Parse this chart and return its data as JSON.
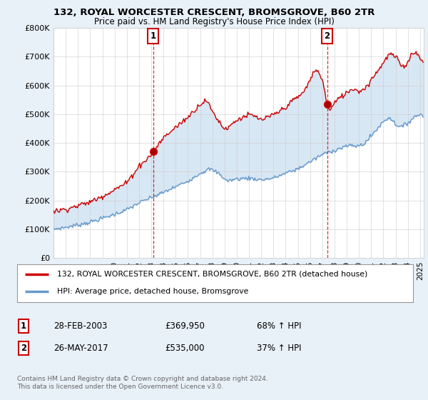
{
  "title1": "132, ROYAL WORCESTER CRESCENT, BROMSGROVE, B60 2TR",
  "title2": "Price paid vs. HM Land Registry's House Price Index (HPI)",
  "ylim": [
    0,
    800000
  ],
  "yticks": [
    0,
    100000,
    200000,
    300000,
    400000,
    500000,
    600000,
    700000,
    800000
  ],
  "ytick_labels": [
    "£0",
    "£100K",
    "£200K",
    "£300K",
    "£400K",
    "£500K",
    "£600K",
    "£700K",
    "£800K"
  ],
  "xlim_start": 1995.0,
  "xlim_end": 2025.3,
  "line1_color": "#cc0000",
  "line2_color": "#6699cc",
  "fill_color": "#ddeeff",
  "marker1_x": 2003.15,
  "marker1_y": 369950,
  "marker2_x": 2017.4,
  "marker2_y": 535000,
  "legend_line1": "132, ROYAL WORCESTER CRESCENT, BROMSGROVE, B60 2TR (detached house)",
  "legend_line2": "HPI: Average price, detached house, Bromsgrove",
  "table_rows": [
    {
      "num": "1",
      "date": "28-FEB-2003",
      "price": "£369,950",
      "hpi": "68% ↑ HPI"
    },
    {
      "num": "2",
      "date": "26-MAY-2017",
      "price": "£535,000",
      "hpi": "37% ↑ HPI"
    }
  ],
  "footnote": "Contains HM Land Registry data © Crown copyright and database right 2024.\nThis data is licensed under the Open Government Licence v3.0.",
  "bg_color": "#e8f0f8",
  "plot_bg": "#ffffff",
  "grid_color": "#cccccc"
}
